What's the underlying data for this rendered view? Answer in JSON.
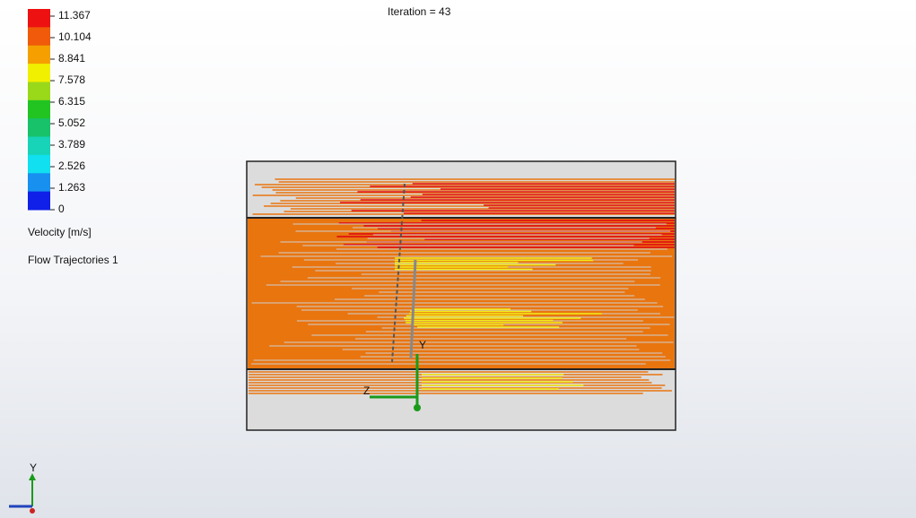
{
  "header": {
    "iteration": "Iteration = 43"
  },
  "legend": {
    "ticks": [
      "11.367",
      "10.104",
      "8.841",
      "7.578",
      "6.315",
      "5.052",
      "3.789",
      "2.526",
      "1.263",
      "0"
    ],
    "quantity": "Velocity [m/s]",
    "feature": "Flow Trajectories 1"
  },
  "triad": {
    "model_y": "Y",
    "model_z": "Z",
    "view_y": "Y"
  }
}
